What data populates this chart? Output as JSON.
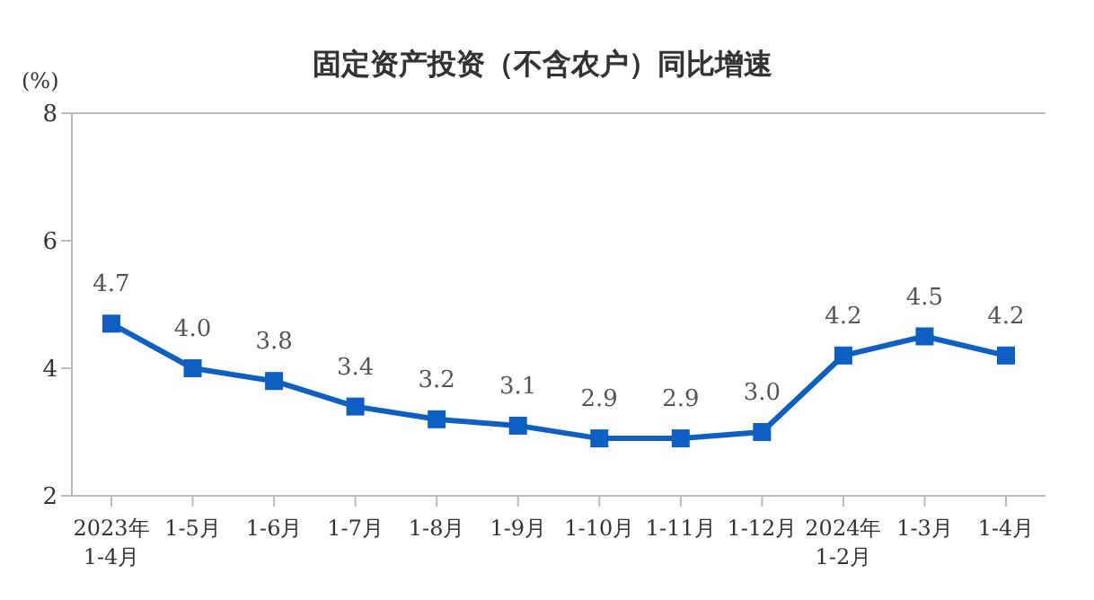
{
  "chart_data": {
    "type": "line",
    "title": "固定资产投资（不含农户）同比增速",
    "ylabel": "(%)",
    "categories": [
      "2023年\n1-4月",
      "1-5月",
      "1-6月",
      "1-7月",
      "1-8月",
      "1-9月",
      "1-10月",
      "1-11月",
      "1-12月",
      "2024年\n1-2月",
      "1-3月",
      "1-4月"
    ],
    "series": [
      {
        "color": "#0e5fc2",
        "values": [
          4.7,
          4.0,
          3.8,
          3.4,
          3.2,
          3.1,
          2.9,
          2.9,
          3.0,
          4.2,
          4.5,
          4.2
        ],
        "value_labels": [
          "4.7",
          "4.0",
          "3.8",
          "3.4",
          "3.2",
          "3.1",
          "2.9",
          "2.9",
          "3.0",
          "4.2",
          "4.5",
          "4.2"
        ]
      }
    ],
    "ylim": [
      2,
      8
    ],
    "yticks": [
      2,
      4,
      6,
      8
    ],
    "marker": "square",
    "line_style": "solid"
  }
}
